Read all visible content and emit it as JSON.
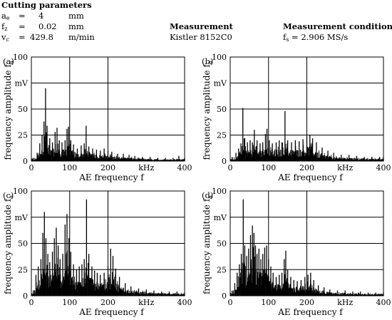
{
  "header": {
    "cutting_title": "Cutting parameters",
    "params": [
      {
        "sym": "a",
        "sub": "e",
        "eq": "=",
        "val": "4",
        "unit": "mm"
      },
      {
        "sym": "f",
        "sub": "z",
        "eq": "=",
        "val": "0.02",
        "unit": "mm"
      },
      {
        "sym": "v",
        "sub": "c",
        "eq": "=",
        "val": "429.8",
        "unit": "m/min"
      }
    ],
    "measurement_title": "Measurement",
    "measurement_value": "Kistler 8152C0",
    "conditions_title": "Measurement conditions",
    "conditions_sym": "f",
    "conditions_sub": "s",
    "conditions_value": "= 2.906 MS/s"
  },
  "chart_data": [
    {
      "type": "area",
      "panel": "(a)",
      "xlabel": "AE frequency f",
      "xunit": "kHz",
      "ylabel": "frequency amplitude f",
      "ylabel_sub": "a",
      "yunit": "mV",
      "xlim": [
        0,
        400
      ],
      "ylim": [
        0,
        100
      ],
      "xticks": [
        0,
        100,
        200,
        400
      ],
      "yticks": [
        0,
        25,
        50,
        75,
        100
      ],
      "grid": true,
      "peaks": [
        {
          "x": 5,
          "y": 3
        },
        {
          "x": 15,
          "y": 8
        },
        {
          "x": 22,
          "y": 17
        },
        {
          "x": 28,
          "y": 25
        },
        {
          "x": 33,
          "y": 38
        },
        {
          "x": 37,
          "y": 70
        },
        {
          "x": 41,
          "y": 34
        },
        {
          "x": 48,
          "y": 22
        },
        {
          "x": 55,
          "y": 18
        },
        {
          "x": 62,
          "y": 28
        },
        {
          "x": 67,
          "y": 32
        },
        {
          "x": 73,
          "y": 20
        },
        {
          "x": 80,
          "y": 18
        },
        {
          "x": 88,
          "y": 20
        },
        {
          "x": 93,
          "y": 31
        },
        {
          "x": 97,
          "y": 33
        },
        {
          "x": 103,
          "y": 20
        },
        {
          "x": 110,
          "y": 16
        },
        {
          "x": 120,
          "y": 12
        },
        {
          "x": 130,
          "y": 15
        },
        {
          "x": 138,
          "y": 17
        },
        {
          "x": 143,
          "y": 34
        },
        {
          "x": 150,
          "y": 14
        },
        {
          "x": 160,
          "y": 12
        },
        {
          "x": 170,
          "y": 11
        },
        {
          "x": 180,
          "y": 10
        },
        {
          "x": 190,
          "y": 12
        },
        {
          "x": 200,
          "y": 10
        },
        {
          "x": 210,
          "y": 9
        },
        {
          "x": 225,
          "y": 7
        },
        {
          "x": 240,
          "y": 7
        },
        {
          "x": 255,
          "y": 6
        },
        {
          "x": 270,
          "y": 5
        },
        {
          "x": 290,
          "y": 4
        },
        {
          "x": 310,
          "y": 4
        },
        {
          "x": 330,
          "y": 3
        },
        {
          "x": 350,
          "y": 3
        },
        {
          "x": 370,
          "y": 3
        },
        {
          "x": 385,
          "y": 5
        },
        {
          "x": 400,
          "y": 3
        }
      ]
    },
    {
      "type": "area",
      "panel": "(b)",
      "xlabel": "AE frequency f",
      "xunit": "kHz",
      "ylabel": "frequency amplitude f",
      "ylabel_sub": "a",
      "yunit": "mV",
      "xlim": [
        0,
        400
      ],
      "ylim": [
        0,
        100
      ],
      "xticks": [
        0,
        100,
        200,
        400
      ],
      "yticks": [
        0,
        25,
        50,
        75,
        100
      ],
      "grid": true,
      "peaks": [
        {
          "x": 5,
          "y": 4
        },
        {
          "x": 15,
          "y": 8
        },
        {
          "x": 22,
          "y": 12
        },
        {
          "x": 28,
          "y": 17
        },
        {
          "x": 33,
          "y": 51
        },
        {
          "x": 38,
          "y": 22
        },
        {
          "x": 45,
          "y": 18
        },
        {
          "x": 52,
          "y": 20
        },
        {
          "x": 58,
          "y": 18
        },
        {
          "x": 63,
          "y": 30
        },
        {
          "x": 70,
          "y": 20
        },
        {
          "x": 78,
          "y": 17
        },
        {
          "x": 85,
          "y": 18
        },
        {
          "x": 92,
          "y": 26
        },
        {
          "x": 96,
          "y": 31
        },
        {
          "x": 102,
          "y": 20
        },
        {
          "x": 110,
          "y": 17
        },
        {
          "x": 120,
          "y": 18
        },
        {
          "x": 128,
          "y": 20
        },
        {
          "x": 135,
          "y": 18
        },
        {
          "x": 143,
          "y": 48
        },
        {
          "x": 150,
          "y": 20
        },
        {
          "x": 160,
          "y": 18
        },
        {
          "x": 170,
          "y": 20
        },
        {
          "x": 180,
          "y": 19
        },
        {
          "x": 190,
          "y": 21
        },
        {
          "x": 200,
          "y": 24
        },
        {
          "x": 208,
          "y": 25
        },
        {
          "x": 215,
          "y": 22
        },
        {
          "x": 225,
          "y": 18
        },
        {
          "x": 240,
          "y": 13
        },
        {
          "x": 255,
          "y": 10
        },
        {
          "x": 270,
          "y": 8
        },
        {
          "x": 290,
          "y": 6
        },
        {
          "x": 310,
          "y": 6
        },
        {
          "x": 330,
          "y": 5
        },
        {
          "x": 350,
          "y": 4
        },
        {
          "x": 370,
          "y": 4
        },
        {
          "x": 390,
          "y": 4
        },
        {
          "x": 400,
          "y": 4
        }
      ]
    },
    {
      "type": "area",
      "panel": "(c)",
      "xlabel": "AE frequency f",
      "xunit": "kHz",
      "ylabel": "frequency amplitude f",
      "ylabel_sub": "a",
      "yunit": "mV",
      "xlim": [
        0,
        400
      ],
      "ylim": [
        0,
        100
      ],
      "xticks": [
        0,
        100,
        200,
        400
      ],
      "yticks": [
        0,
        25,
        50,
        75,
        100
      ],
      "grid": true,
      "peaks": [
        {
          "x": 5,
          "y": 5
        },
        {
          "x": 12,
          "y": 20
        },
        {
          "x": 18,
          "y": 28
        },
        {
          "x": 25,
          "y": 35
        },
        {
          "x": 30,
          "y": 60
        },
        {
          "x": 34,
          "y": 80
        },
        {
          "x": 38,
          "y": 55
        },
        {
          "x": 43,
          "y": 40
        },
        {
          "x": 48,
          "y": 32
        },
        {
          "x": 55,
          "y": 42
        },
        {
          "x": 60,
          "y": 55
        },
        {
          "x": 65,
          "y": 65
        },
        {
          "x": 70,
          "y": 48
        },
        {
          "x": 75,
          "y": 35
        },
        {
          "x": 82,
          "y": 40
        },
        {
          "x": 88,
          "y": 68
        },
        {
          "x": 93,
          "y": 78
        },
        {
          "x": 98,
          "y": 55
        },
        {
          "x": 103,
          "y": 42
        },
        {
          "x": 110,
          "y": 30
        },
        {
          "x": 118,
          "y": 25
        },
        {
          "x": 125,
          "y": 28
        },
        {
          "x": 132,
          "y": 30
        },
        {
          "x": 138,
          "y": 35
        },
        {
          "x": 144,
          "y": 92
        },
        {
          "x": 150,
          "y": 40
        },
        {
          "x": 158,
          "y": 28
        },
        {
          "x": 165,
          "y": 24
        },
        {
          "x": 172,
          "y": 22
        },
        {
          "x": 180,
          "y": 20
        },
        {
          "x": 190,
          "y": 22
        },
        {
          "x": 200,
          "y": 28
        },
        {
          "x": 207,
          "y": 45
        },
        {
          "x": 213,
          "y": 38
        },
        {
          "x": 220,
          "y": 26
        },
        {
          "x": 230,
          "y": 18
        },
        {
          "x": 245,
          "y": 12
        },
        {
          "x": 260,
          "y": 9
        },
        {
          "x": 280,
          "y": 7
        },
        {
          "x": 300,
          "y": 6
        },
        {
          "x": 320,
          "y": 5
        },
        {
          "x": 340,
          "y": 4
        },
        {
          "x": 360,
          "y": 4
        },
        {
          "x": 380,
          "y": 4
        },
        {
          "x": 400,
          "y": 3
        }
      ]
    },
    {
      "type": "area",
      "panel": "(d)",
      "xlabel": "AE frequency f",
      "xunit": "kHz",
      "ylabel": "frequency amplitude f",
      "ylabel_sub": "a",
      "yunit": "mV",
      "xlim": [
        0,
        400
      ],
      "ylim": [
        0,
        100
      ],
      "xticks": [
        0,
        100,
        200,
        400
      ],
      "yticks": [
        0,
        25,
        50,
        75,
        100
      ],
      "grid": true,
      "peaks": [
        {
          "x": 5,
          "y": 5
        },
        {
          "x": 12,
          "y": 12
        },
        {
          "x": 18,
          "y": 22
        },
        {
          "x": 24,
          "y": 30
        },
        {
          "x": 29,
          "y": 40
        },
        {
          "x": 34,
          "y": 92
        },
        {
          "x": 38,
          "y": 48
        },
        {
          "x": 43,
          "y": 38
        },
        {
          "x": 48,
          "y": 45
        },
        {
          "x": 53,
          "y": 58
        },
        {
          "x": 58,
          "y": 67
        },
        {
          "x": 62,
          "y": 60
        },
        {
          "x": 66,
          "y": 48
        },
        {
          "x": 70,
          "y": 40
        },
        {
          "x": 75,
          "y": 45
        },
        {
          "x": 80,
          "y": 35
        },
        {
          "x": 85,
          "y": 40
        },
        {
          "x": 90,
          "y": 46
        },
        {
          "x": 95,
          "y": 48
        },
        {
          "x": 100,
          "y": 35
        },
        {
          "x": 106,
          "y": 28
        },
        {
          "x": 112,
          "y": 22
        },
        {
          "x": 120,
          "y": 18
        },
        {
          "x": 128,
          "y": 20
        },
        {
          "x": 135,
          "y": 22
        },
        {
          "x": 141,
          "y": 35
        },
        {
          "x": 145,
          "y": 43
        },
        {
          "x": 150,
          "y": 25
        },
        {
          "x": 158,
          "y": 18
        },
        {
          "x": 166,
          "y": 15
        },
        {
          "x": 175,
          "y": 14
        },
        {
          "x": 185,
          "y": 15
        },
        {
          "x": 195,
          "y": 18
        },
        {
          "x": 203,
          "y": 20
        },
        {
          "x": 210,
          "y": 22
        },
        {
          "x": 218,
          "y": 15
        },
        {
          "x": 230,
          "y": 10
        },
        {
          "x": 245,
          "y": 8
        },
        {
          "x": 260,
          "y": 6
        },
        {
          "x": 280,
          "y": 5
        },
        {
          "x": 300,
          "y": 5
        },
        {
          "x": 320,
          "y": 4
        },
        {
          "x": 340,
          "y": 4
        },
        {
          "x": 360,
          "y": 3
        },
        {
          "x": 380,
          "y": 3
        },
        {
          "x": 400,
          "y": 3
        }
      ]
    }
  ]
}
